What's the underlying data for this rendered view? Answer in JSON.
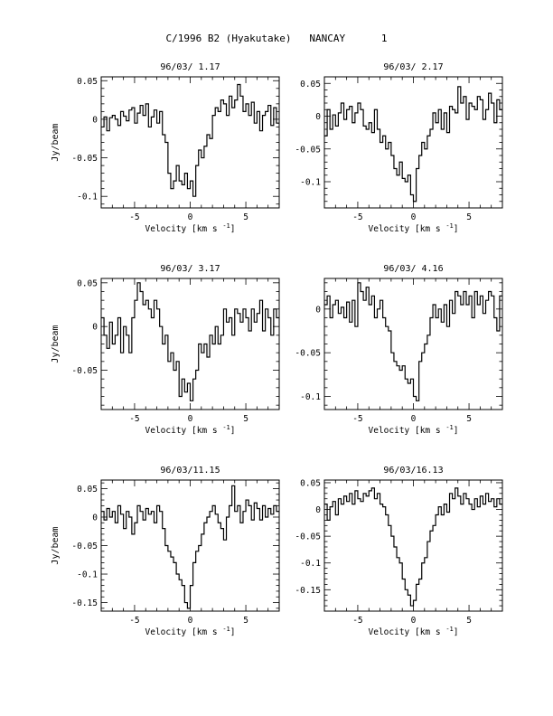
{
  "figure": {
    "title": "C/1996 B2 (Hyakutake)   NANCAY      1"
  },
  "chart_data": [
    {
      "type": "line",
      "title": "96/03/ 1.17",
      "xlabel": "Velocity [km s",
      "xlabel_sup": "-1",
      "xlabel_end": "]",
      "ylabel": "Jy/beam",
      "xlim": [
        -8,
        8
      ],
      "ylim": [
        -0.115,
        0.055
      ],
      "xticks": [
        -5,
        0,
        5
      ],
      "yticks": [
        0.05,
        0,
        -0.05,
        -0.1
      ],
      "ytick_labels": [
        "0.05",
        "0",
        "-0.05",
        "-0.1"
      ],
      "x": [
        -8,
        -7.75,
        -7.5,
        -7.25,
        -7,
        -6.75,
        -6.5,
        -6.25,
        -6,
        -5.75,
        -5.5,
        -5.25,
        -5,
        -4.75,
        -4.5,
        -4.25,
        -4,
        -3.75,
        -3.5,
        -3.25,
        -3,
        -2.75,
        -2.5,
        -2.25,
        -2,
        -1.75,
        -1.5,
        -1.25,
        -1,
        -0.75,
        -0.5,
        -0.25,
        0,
        0.25,
        0.5,
        0.75,
        1,
        1.25,
        1.5,
        1.75,
        2,
        2.25,
        2.5,
        2.75,
        3,
        3.25,
        3.5,
        3.75,
        4,
        4.25,
        4.5,
        4.75,
        5,
        5.25,
        5.5,
        5.75,
        6,
        6.25,
        6.5,
        6.75,
        7,
        7.25,
        7.5,
        7.75
      ],
      "values": [
        -0.01,
        0.003,
        -0.015,
        0.002,
        0.005,
        0,
        -0.008,
        0.01,
        0.004,
        -0.002,
        0.012,
        0.015,
        -0.005,
        0.008,
        0.018,
        0.005,
        0.02,
        -0.01,
        0.003,
        0.012,
        -0.005,
        0.01,
        -0.02,
        -0.03,
        -0.07,
        -0.09,
        -0.08,
        -0.06,
        -0.08,
        -0.085,
        -0.07,
        -0.09,
        -0.08,
        -0.1,
        -0.06,
        -0.04,
        -0.05,
        -0.035,
        -0.02,
        -0.025,
        0.005,
        0.015,
        0.01,
        0.025,
        0.02,
        0.005,
        0.03,
        0.015,
        0.025,
        0.045,
        0.03,
        0.01,
        0.02,
        0.005,
        0.022,
        -0.005,
        0.01,
        -0.015,
        0.005,
        0.01,
        0.018,
        -0.008,
        0.015,
        -0.005
      ]
    },
    {
      "type": "line",
      "title": "96/03/ 2.17",
      "xlabel": "Velocity [km s",
      "xlabel_sup": "-1",
      "xlabel_end": "]",
      "ylabel": "",
      "xlim": [
        -8,
        8
      ],
      "ylim": [
        -0.14,
        0.06
      ],
      "xticks": [
        -5,
        0,
        5
      ],
      "yticks": [
        0.05,
        0,
        -0.05,
        -0.1
      ],
      "ytick_labels": [
        "0.05",
        "0",
        "-0.05",
        "-0.1"
      ],
      "x": [
        -8,
        -7.75,
        -7.5,
        -7.25,
        -7,
        -6.75,
        -6.5,
        -6.25,
        -6,
        -5.75,
        -5.5,
        -5.25,
        -5,
        -4.75,
        -4.5,
        -4.25,
        -4,
        -3.75,
        -3.5,
        -3.25,
        -3,
        -2.75,
        -2.5,
        -2.25,
        -2,
        -1.75,
        -1.5,
        -1.25,
        -1,
        -0.75,
        -0.5,
        -0.25,
        0,
        0.25,
        0.5,
        0.75,
        1,
        1.25,
        1.5,
        1.75,
        2,
        2.25,
        2.5,
        2.75,
        3,
        3.25,
        3.5,
        3.75,
        4,
        4.25,
        4.5,
        4.75,
        5,
        5.25,
        5.5,
        5.75,
        6,
        6.25,
        6.5,
        6.75,
        7,
        7.25,
        7.5,
        7.75
      ],
      "values": [
        -0.03,
        0.01,
        -0.02,
        0.002,
        -0.015,
        0.005,
        0.02,
        -0.005,
        0.01,
        0.015,
        -0.01,
        0.005,
        0.02,
        0.01,
        -0.015,
        -0.02,
        -0.01,
        -0.025,
        0.01,
        -0.02,
        -0.04,
        -0.03,
        -0.05,
        -0.04,
        -0.06,
        -0.08,
        -0.09,
        -0.07,
        -0.095,
        -0.1,
        -0.09,
        -0.12,
        -0.13,
        -0.08,
        -0.06,
        -0.04,
        -0.05,
        -0.03,
        -0.02,
        0.005,
        -0.01,
        0.01,
        -0.02,
        0.005,
        -0.025,
        0.015,
        0.01,
        0.005,
        0.045,
        0.02,
        0.03,
        -0.005,
        0.02,
        0.015,
        0.01,
        0.03,
        0.025,
        -0.005,
        0.01,
        0.035,
        0.02,
        -0.01,
        0.025,
        0.01
      ]
    },
    {
      "type": "line",
      "title": "96/03/ 3.17",
      "xlabel": "Velocity [km s",
      "xlabel_sup": "-1",
      "xlabel_end": "]",
      "ylabel": "Jy/beam",
      "xlim": [
        -8,
        8
      ],
      "ylim": [
        -0.095,
        0.055
      ],
      "xticks": [
        -5,
        0,
        5
      ],
      "yticks": [
        0.05,
        0,
        -0.05
      ],
      "ytick_labels": [
        "0.05",
        "0",
        "-0.05"
      ],
      "x": [
        -8,
        -7.75,
        -7.5,
        -7.25,
        -7,
        -6.75,
        -6.5,
        -6.25,
        -6,
        -5.75,
        -5.5,
        -5.25,
        -5,
        -4.75,
        -4.5,
        -4.25,
        -4,
        -3.75,
        -3.5,
        -3.25,
        -3,
        -2.75,
        -2.5,
        -2.25,
        -2,
        -1.75,
        -1.5,
        -1.25,
        -1,
        -0.75,
        -0.5,
        -0.25,
        0,
        0.25,
        0.5,
        0.75,
        1,
        1.25,
        1.5,
        1.75,
        2,
        2.25,
        2.5,
        2.75,
        3,
        3.25,
        3.5,
        3.75,
        4,
        4.25,
        4.5,
        4.75,
        5,
        5.25,
        5.5,
        5.75,
        6,
        6.25,
        6.5,
        6.75,
        7,
        7.25,
        7.5,
        7.75
      ],
      "values": [
        0.01,
        -0.01,
        -0.025,
        0.005,
        -0.02,
        -0.01,
        0.01,
        -0.03,
        0,
        -0.01,
        -0.03,
        0.01,
        0.03,
        0.05,
        0.04,
        0.025,
        0.03,
        0.02,
        0.01,
        0.03,
        0.02,
        0,
        -0.02,
        -0.01,
        -0.04,
        -0.03,
        -0.05,
        -0.04,
        -0.08,
        -0.06,
        -0.075,
        -0.065,
        -0.085,
        -0.06,
        -0.05,
        -0.02,
        -0.03,
        -0.02,
        -0.035,
        -0.01,
        -0.02,
        0,
        -0.02,
        -0.01,
        0.02,
        0.005,
        0.01,
        -0.01,
        0.02,
        0.015,
        0.005,
        0.02,
        0.01,
        -0.005,
        0.02,
        0.005,
        0.015,
        0.03,
        -0.005,
        0.02,
        0.01,
        -0.01,
        0.02,
        0.01
      ]
    },
    {
      "type": "line",
      "title": "96/03/ 4.16",
      "xlabel": "Velocity [km s",
      "xlabel_sup": "-1",
      "xlabel_end": "]",
      "ylabel": "",
      "xlim": [
        -8,
        8
      ],
      "ylim": [
        -0.115,
        0.035
      ],
      "xticks": [
        -5,
        0,
        5
      ],
      "yticks": [
        0,
        -0.05,
        -0.1
      ],
      "ytick_labels": [
        "0",
        "-0.05",
        "-0.1"
      ],
      "x": [
        -8,
        -7.75,
        -7.5,
        -7.25,
        -7,
        -6.75,
        -6.5,
        -6.25,
        -6,
        -5.75,
        -5.5,
        -5.25,
        -5,
        -4.75,
        -4.5,
        -4.25,
        -4,
        -3.75,
        -3.5,
        -3.25,
        -3,
        -2.75,
        -2.5,
        -2.25,
        -2,
        -1.75,
        -1.5,
        -1.25,
        -1,
        -0.75,
        -0.5,
        -0.25,
        0,
        0.25,
        0.5,
        0.75,
        1,
        1.25,
        1.5,
        1.75,
        2,
        2.25,
        2.5,
        2.75,
        3,
        3.25,
        3.5,
        3.75,
        4,
        4.25,
        4.5,
        4.75,
        5,
        5.25,
        5.5,
        5.75,
        6,
        6.25,
        6.5,
        6.75,
        7,
        7.25,
        7.5,
        7.75
      ],
      "values": [
        0.005,
        0.015,
        -0.01,
        0.005,
        0.01,
        -0.005,
        0.002,
        -0.01,
        0.008,
        -0.015,
        0.01,
        -0.02,
        0.03,
        0.02,
        0.01,
        0.025,
        0.005,
        0.015,
        -0.01,
        0,
        0.01,
        -0.01,
        -0.02,
        -0.025,
        -0.05,
        -0.06,
        -0.065,
        -0.07,
        -0.065,
        -0.08,
        -0.085,
        -0.08,
        -0.1,
        -0.105,
        -0.06,
        -0.05,
        -0.04,
        -0.03,
        -0.01,
        0.005,
        -0.01,
        0,
        -0.015,
        0.005,
        -0.02,
        0.01,
        -0.005,
        0.02,
        0.015,
        0.005,
        0.02,
        0.005,
        0.015,
        -0.01,
        0.02,
        0.005,
        0.015,
        -0.005,
        0.01,
        0.02,
        0.015,
        -0.01,
        -0.025,
        0.015
      ]
    },
    {
      "type": "line",
      "title": "96/03/11.15",
      "xlabel": "Velocity [km s",
      "xlabel_sup": "-1",
      "xlabel_end": "]",
      "ylabel": "Jy/beam",
      "xlim": [
        -8,
        8
      ],
      "ylim": [
        -0.165,
        0.065
      ],
      "xticks": [
        -5,
        0,
        5
      ],
      "yticks": [
        0.05,
        0,
        -0.05,
        -0.1,
        -0.15
      ],
      "ytick_labels": [
        "0.05",
        "0",
        "-0.05",
        "-0.1",
        "-0.15"
      ],
      "x": [
        -8,
        -7.75,
        -7.5,
        -7.25,
        -7,
        -6.75,
        -6.5,
        -6.25,
        -6,
        -5.75,
        -5.5,
        -5.25,
        -5,
        -4.75,
        -4.5,
        -4.25,
        -4,
        -3.75,
        -3.5,
        -3.25,
        -3,
        -2.75,
        -2.5,
        -2.25,
        -2,
        -1.75,
        -1.5,
        -1.25,
        -1,
        -0.75,
        -0.5,
        -0.25,
        0,
        0.25,
        0.5,
        0.75,
        1,
        1.25,
        1.5,
        1.75,
        2,
        2.25,
        2.5,
        2.75,
        3,
        3.25,
        3.5,
        3.75,
        4,
        4.25,
        4.5,
        4.75,
        5,
        5.25,
        5.5,
        5.75,
        6,
        6.25,
        6.5,
        6.75,
        7,
        7.25,
        7.5,
        7.75
      ],
      "values": [
        0.01,
        -0.005,
        0.015,
        0,
        0.01,
        -0.01,
        0.02,
        0.005,
        -0.02,
        0.01,
        0,
        -0.03,
        -0.01,
        0.02,
        0.01,
        -0.005,
        0.015,
        0.005,
        0.01,
        -0.01,
        0.02,
        0.01,
        -0.02,
        -0.05,
        -0.06,
        -0.07,
        -0.08,
        -0.1,
        -0.11,
        -0.12,
        -0.15,
        -0.16,
        -0.12,
        -0.08,
        -0.06,
        -0.05,
        -0.03,
        -0.01,
        0,
        0.01,
        0.02,
        0.005,
        -0.01,
        -0.02,
        -0.04,
        0,
        0.02,
        0.055,
        0.01,
        0.02,
        -0.01,
        0.01,
        0.03,
        0.02,
        -0.005,
        0.025,
        0.015,
        -0.005,
        0.02,
        0,
        0.015,
        0.005,
        0.02,
        0.01
      ]
    },
    {
      "type": "line",
      "title": "96/03/16.13",
      "xlabel": "Velocity [km s",
      "xlabel_sup": "-1",
      "xlabel_end": "]",
      "ylabel": "",
      "xlim": [
        -8,
        8
      ],
      "ylim": [
        -0.19,
        0.055
      ],
      "xticks": [
        -5,
        0,
        5
      ],
      "yticks": [
        0.05,
        0,
        -0.05,
        -0.1,
        -0.15
      ],
      "ytick_labels": [
        "0.05",
        "0",
        "-0.05",
        "-0.1",
        "-0.15"
      ],
      "x": [
        -8,
        -7.75,
        -7.5,
        -7.25,
        -7,
        -6.75,
        -6.5,
        -6.25,
        -6,
        -5.75,
        -5.5,
        -5.25,
        -5,
        -4.75,
        -4.5,
        -4.25,
        -4,
        -3.75,
        -3.5,
        -3.25,
        -3,
        -2.75,
        -2.5,
        -2.25,
        -2,
        -1.75,
        -1.5,
        -1.25,
        -1,
        -0.75,
        -0.5,
        -0.25,
        0,
        0.25,
        0.5,
        0.75,
        1,
        1.25,
        1.5,
        1.75,
        2,
        2.25,
        2.5,
        2.75,
        3,
        3.25,
        3.5,
        3.75,
        4,
        4.25,
        4.5,
        4.75,
        5,
        5.25,
        5.5,
        5.75,
        6,
        6.25,
        6.5,
        6.75,
        7,
        7.25,
        7.5,
        7.75
      ],
      "values": [
        0.01,
        -0.02,
        0.005,
        0.015,
        -0.01,
        0.02,
        0.01,
        0.025,
        0.015,
        0.03,
        0.01,
        0.035,
        0.02,
        0.015,
        0.03,
        0.025,
        0.035,
        0.04,
        0.02,
        0.03,
        0.01,
        0.005,
        -0.01,
        -0.03,
        -0.05,
        -0.07,
        -0.09,
        -0.1,
        -0.13,
        -0.15,
        -0.16,
        -0.18,
        -0.17,
        -0.14,
        -0.13,
        -0.1,
        -0.09,
        -0.06,
        -0.04,
        -0.03,
        -0.01,
        0.005,
        -0.01,
        0.01,
        -0.005,
        0.03,
        0.02,
        0.04,
        0.025,
        0.01,
        0.03,
        0.02,
        0.01,
        0,
        0.02,
        0.005,
        0.025,
        0.01,
        0.03,
        0.015,
        0.02,
        0.005,
        0.02,
        0.01
      ]
    }
  ]
}
